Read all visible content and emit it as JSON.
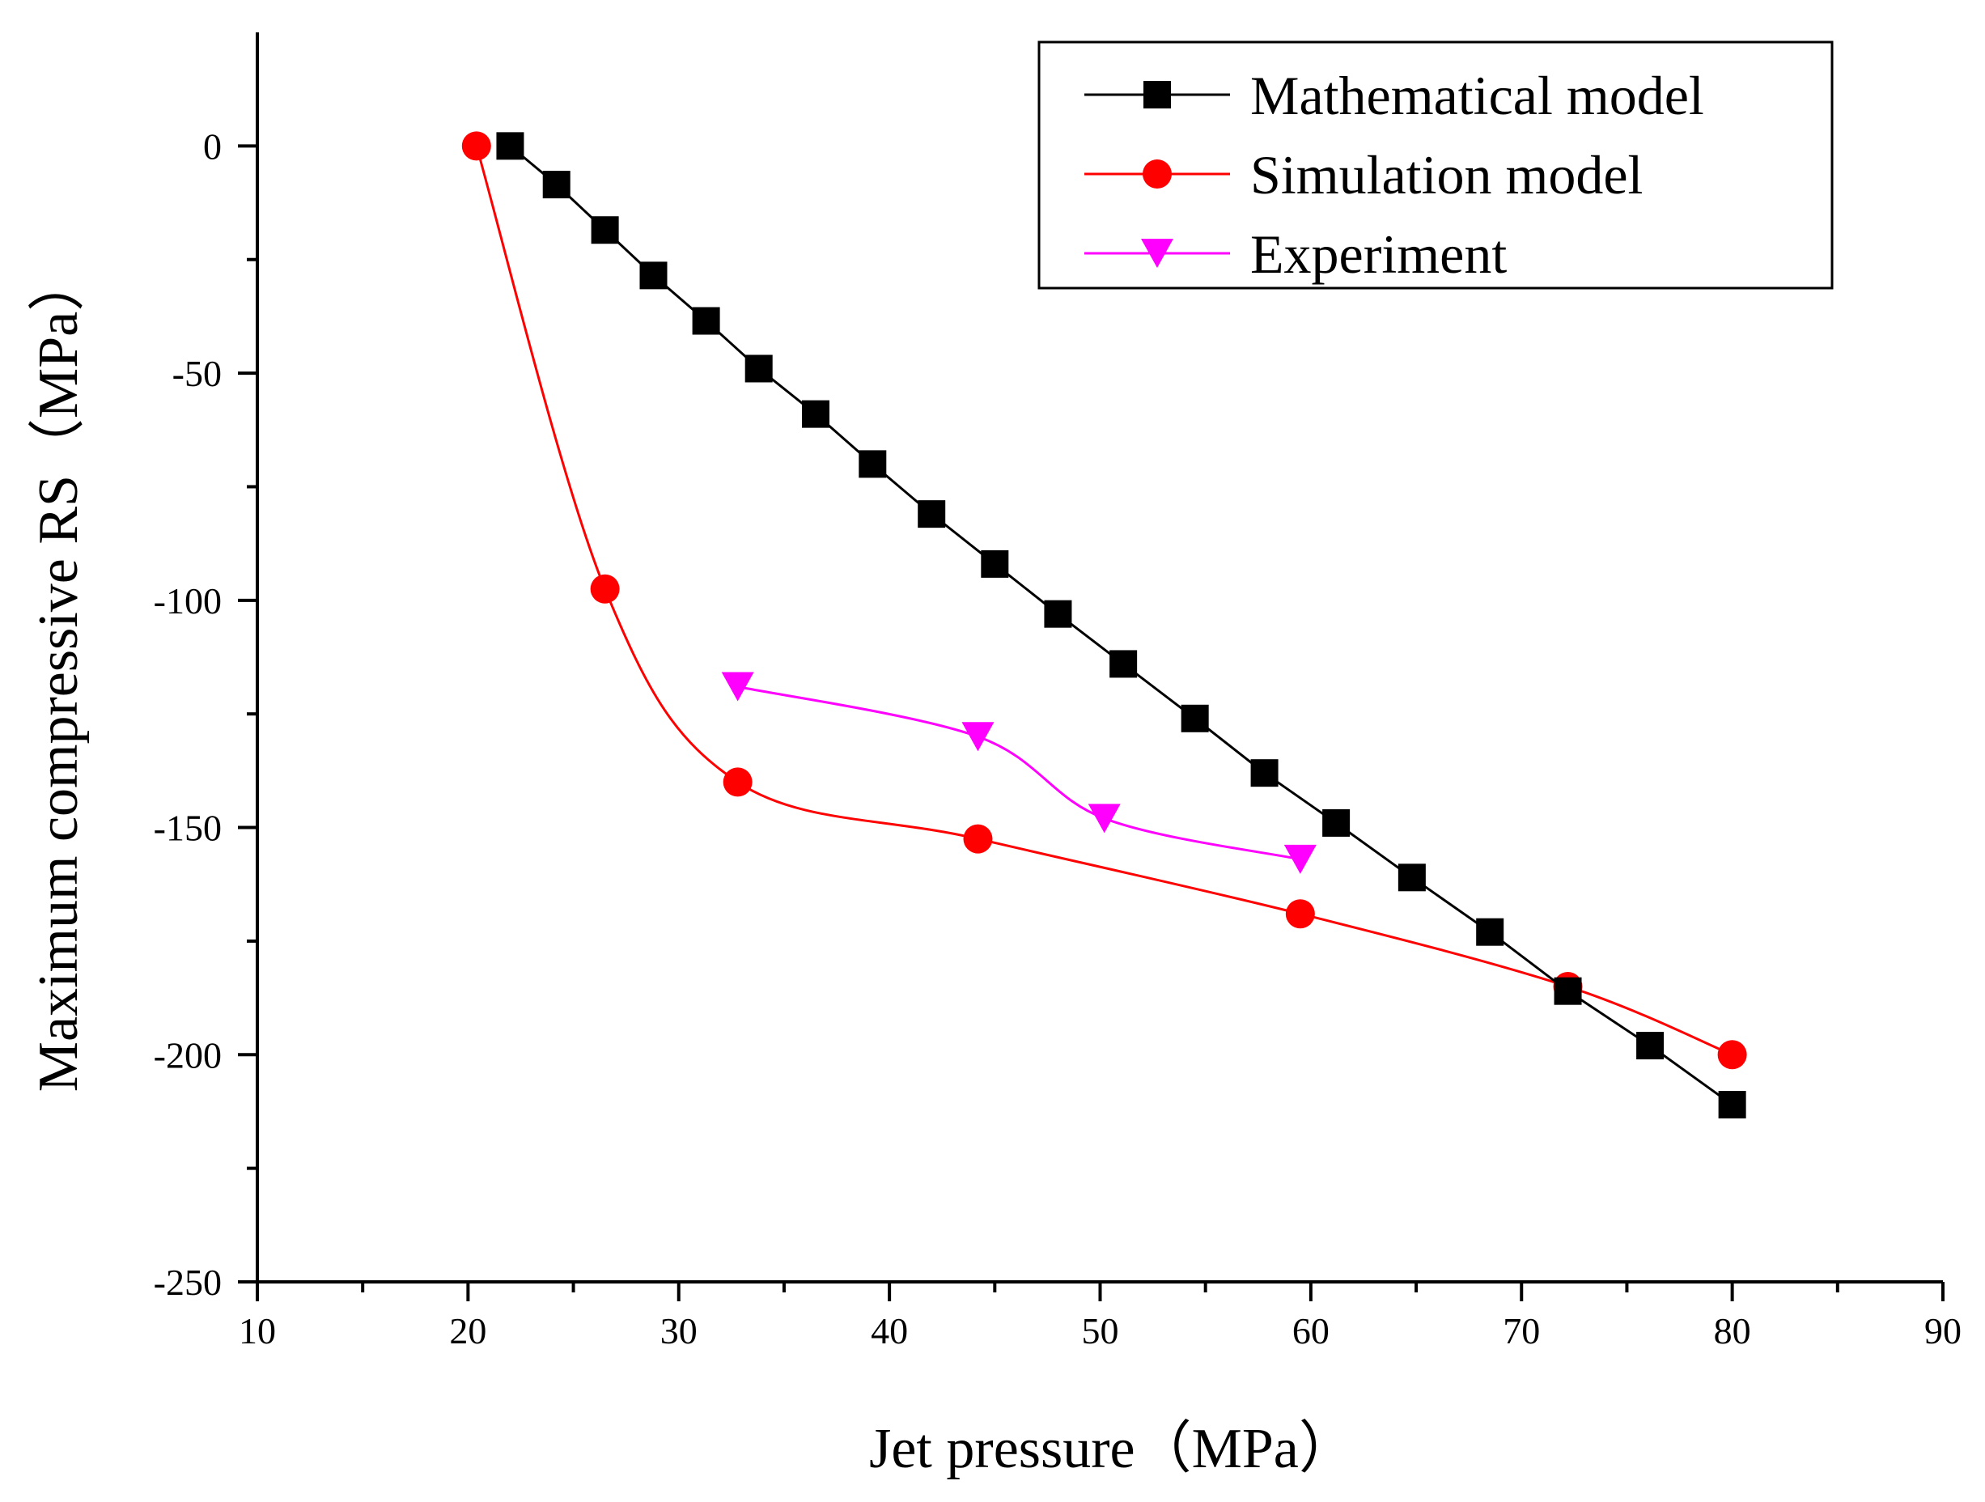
{
  "chart_data": {
    "type": "line",
    "title": "",
    "xlabel": "Jet pressure（MPa）",
    "ylabel": "Maximum compressive RS（MPa）",
    "xlim": [
      10,
      90
    ],
    "ylim": [
      -250,
      25
    ],
    "xticks": [
      10,
      20,
      30,
      40,
      50,
      60,
      70,
      80,
      90
    ],
    "yticks": [
      0,
      -50,
      -100,
      -150,
      -200,
      -250
    ],
    "x_tick_labels": [
      "10",
      "20",
      "30",
      "40",
      "50",
      "60",
      "70",
      "80",
      "90"
    ],
    "y_tick_labels": [
      "0",
      "-50",
      "-100",
      "-150",
      "-200",
      "-250"
    ],
    "grid": false,
    "legend_position": "top-right",
    "series": [
      {
        "name": "Mathematical model",
        "color": "#000000",
        "marker": "square",
        "smooth": false,
        "x": [
          22,
          24.2,
          26.5,
          28.8,
          31.3,
          33.8,
          36.5,
          39.2,
          42,
          45,
          48,
          51.1,
          54.5,
          57.8,
          61.2,
          64.8,
          68.5,
          72.2,
          76.1,
          80
        ],
        "y": [
          0,
          -8.5,
          -18.5,
          -28.5,
          -38.5,
          -49,
          -59,
          -70,
          -81,
          -92,
          -103,
          -114,
          -126,
          -138,
          -149,
          -161,
          -173,
          -186,
          -198,
          -211
        ]
      },
      {
        "name": "Simulation model",
        "color": "#ff0000",
        "marker": "circle",
        "smooth": true,
        "x": [
          20.4,
          26.5,
          32.8,
          44.2,
          59.5,
          72.2,
          80
        ],
        "y": [
          0,
          -97.5,
          -140,
          -152.5,
          -169,
          -185,
          -200
        ]
      },
      {
        "name": "Experiment",
        "color": "#ff00ff",
        "marker": "triangle-down",
        "smooth": true,
        "x": [
          32.8,
          44.2,
          50.2,
          59.5
        ],
        "y": [
          -119,
          -130,
          -148,
          -157
        ]
      }
    ]
  }
}
